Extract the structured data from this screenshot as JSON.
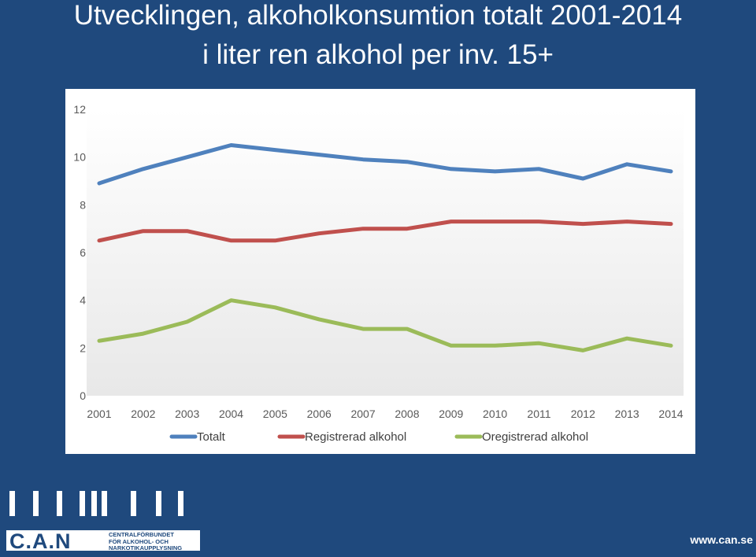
{
  "header": {
    "title_line1": "Utvecklingen, alkoholkonsumtion totalt 2001-2014",
    "title_line2": "i liter ren alkohol per inv. 15+"
  },
  "chart_data": {
    "type": "line",
    "categories": [
      "2001",
      "2002",
      "2003",
      "2004",
      "2005",
      "2006",
      "2007",
      "2008",
      "2009",
      "2010",
      "2011",
      "2012",
      "2013",
      "2014"
    ],
    "ylim": [
      0,
      12
    ],
    "yticks": [
      0,
      2,
      4,
      6,
      8,
      10,
      12
    ],
    "grid": false,
    "legend_position": "bottom",
    "series": [
      {
        "name": "Totalt",
        "color": "#4f81bd",
        "values": [
          8.9,
          9.5,
          10.0,
          10.5,
          10.3,
          10.1,
          9.9,
          9.8,
          9.5,
          9.4,
          9.5,
          9.1,
          9.7,
          9.4
        ]
      },
      {
        "name": "Registrerad alkohol",
        "color": "#c0504d",
        "values": [
          6.5,
          6.9,
          6.9,
          6.5,
          6.5,
          6.8,
          7.0,
          7.0,
          7.3,
          7.3,
          7.3,
          7.2,
          7.3,
          7.2
        ]
      },
      {
        "name": "Oregistrerad alkohol",
        "color": "#9bbb59",
        "values": [
          2.3,
          2.6,
          3.1,
          4.0,
          3.7,
          3.2,
          2.8,
          2.8,
          2.1,
          2.1,
          2.2,
          1.9,
          2.4,
          2.1
        ]
      }
    ]
  },
  "logo": {
    "letters": "C.A.N",
    "subtitle_lines": [
      "CENTRALFÖRBUNDET",
      "FÖR ALKOHOL- OCH",
      "NARKOTIKAUPPLYSNING"
    ]
  },
  "footer": {
    "website": "www.can.se"
  }
}
